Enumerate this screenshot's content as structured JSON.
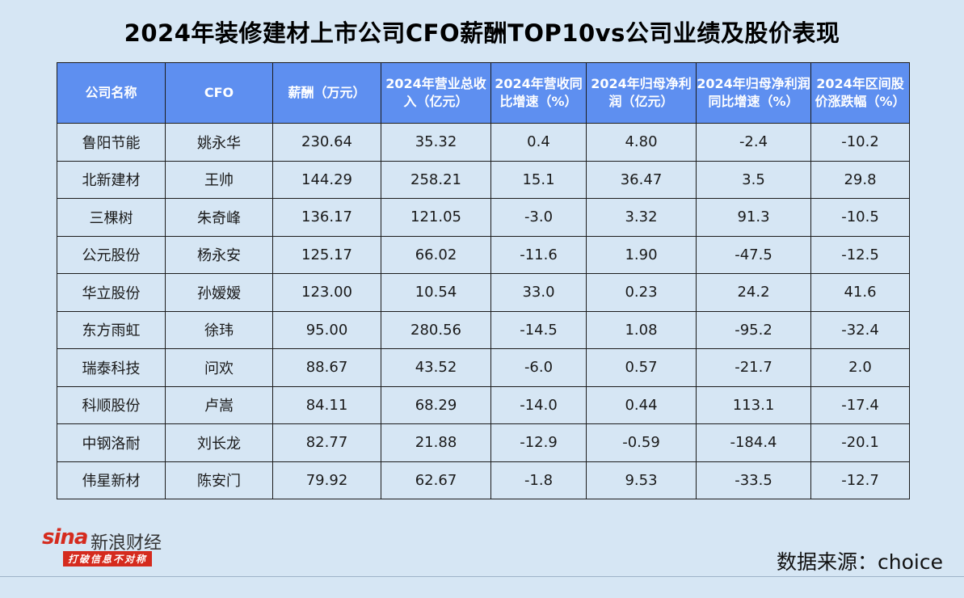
{
  "title": "2024年装修建材上市公司CFO薪酬TOP10vs公司业绩及股价表现",
  "headers": [
    "公司名称",
    "CFO",
    "薪酬（万元）",
    "2024年营业总收入（亿元）",
    "2024年营收同比增速（%）",
    "2024年归母净利润（亿元）",
    "2024年归母净利润同比增速（%）",
    "2024年区间股价涨跌幅（%）"
  ],
  "rows": [
    [
      "鲁阳节能",
      "姚永华",
      "230.64",
      "35.32",
      "0.4",
      "4.80",
      "-2.4",
      "-10.2"
    ],
    [
      "北新建材",
      "王帅",
      "144.29",
      "258.21",
      "15.1",
      "36.47",
      "3.5",
      "29.8"
    ],
    [
      "三棵树",
      "朱奇峰",
      "136.17",
      "121.05",
      "-3.0",
      "3.32",
      "91.3",
      "-10.5"
    ],
    [
      "公元股份",
      "杨永安",
      "125.17",
      "66.02",
      "-11.6",
      "1.90",
      "-47.5",
      "-12.5"
    ],
    [
      "华立股份",
      "孙嫒嫒",
      "123.00",
      "10.54",
      "33.0",
      "0.23",
      "24.2",
      "41.6"
    ],
    [
      "东方雨虹",
      "徐玮",
      "95.00",
      "280.56",
      "-14.5",
      "1.08",
      "-95.2",
      "-32.4"
    ],
    [
      "瑞泰科技",
      "问欢",
      "88.67",
      "43.52",
      "-6.0",
      "0.57",
      "-21.7",
      "2.0"
    ],
    [
      "科顺股份",
      "卢嵩",
      "84.11",
      "68.29",
      "-14.0",
      "0.44",
      "113.1",
      "-17.4"
    ],
    [
      "中钢洛耐",
      "刘长龙",
      "82.77",
      "21.88",
      "-12.9",
      "-0.59",
      "-184.4",
      "-20.1"
    ],
    [
      "伟星新材",
      "陈安门",
      "79.92",
      "62.67",
      "-1.8",
      "9.53",
      "-33.5",
      "-12.7"
    ]
  ],
  "logo": {
    "brand": "sina",
    "name": "新浪财经",
    "slogan": "打破信息不对称"
  },
  "source": "数据来源：choice"
}
